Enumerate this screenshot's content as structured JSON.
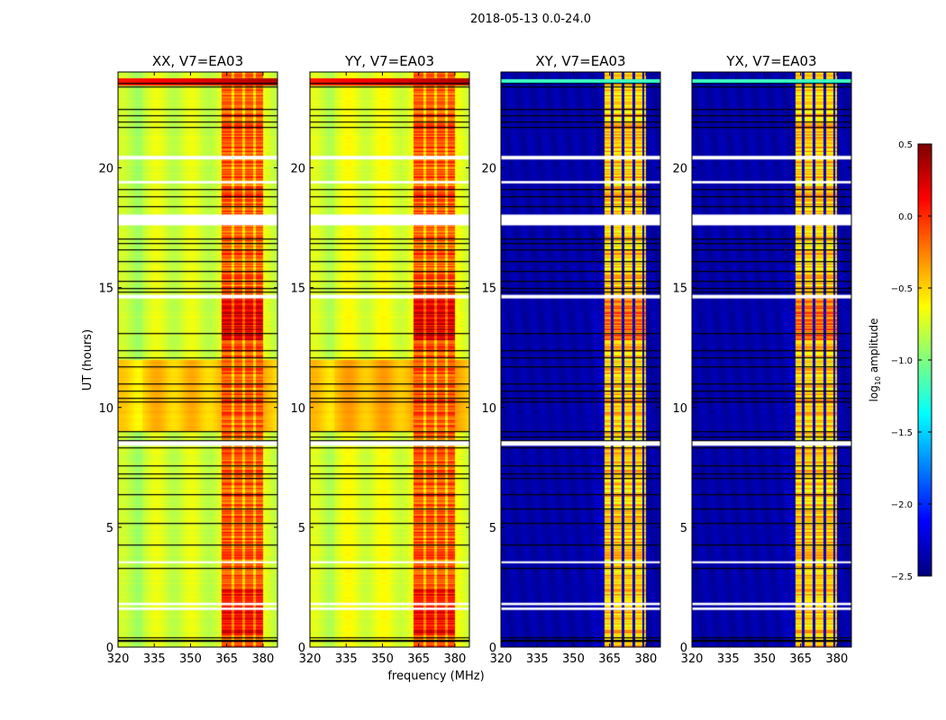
{
  "chart_data": {
    "type": "heatmap",
    "title": "2018-05-13 0.0-24.0",
    "xlabel": "frequency (MHz)",
    "ylabel": "UT (hours)",
    "xlim": [
      320,
      386
    ],
    "ylim": [
      0,
      24
    ],
    "xticks": [
      "320",
      "335",
      "350",
      "365",
      "380"
    ],
    "yticks": [
      "0",
      "5",
      "10",
      "15",
      "20"
    ],
    "panels": [
      {
        "title": "XX, V7=EA03",
        "kind": "auto"
      },
      {
        "title": "YY, V7=EA03",
        "kind": "auto"
      },
      {
        "title": "XY, V7=EA03",
        "kind": "cross"
      },
      {
        "title": "YX, V7=EA03",
        "kind": "cross"
      }
    ],
    "band_mhz": [
      363,
      380
    ],
    "colorbar": {
      "label": "log10 amplitude",
      "label_main": "log",
      "label_sub": "10",
      "label_rest": " amplitude",
      "range": [
        -2.5,
        0.5
      ],
      "colormap": "jet",
      "ticks": [
        "−2.5",
        "−2.0",
        "−1.5",
        "−1.0",
        "−0.5",
        "0.0",
        "0.5"
      ]
    },
    "flagged_gaps_hours": [
      [
        20.35,
        20.5
      ],
      [
        19.35,
        19.45
      ],
      [
        17.6,
        18.05
      ],
      [
        14.55,
        14.7
      ],
      [
        8.4,
        8.6
      ],
      [
        3.5,
        3.58
      ],
      [
        1.55,
        1.65
      ],
      [
        1.75,
        1.85
      ]
    ],
    "flag_lines_hours": [
      23.55,
      23.4,
      22.45,
      22.2,
      21.95,
      21.7,
      19.1,
      18.8,
      18.4,
      17.05,
      16.85,
      16.6,
      16.1,
      15.7,
      15.3,
      15.0,
      14.85,
      13.1,
      12.4,
      12.1,
      11.7,
      11.0,
      10.7,
      10.4,
      10.25,
      9.0,
      8.8,
      8.65,
      8.35,
      7.6,
      7.25,
      7.05,
      6.4,
      5.8,
      5.2,
      4.3,
      3.3,
      0.4,
      0.3,
      0.25
    ]
  }
}
